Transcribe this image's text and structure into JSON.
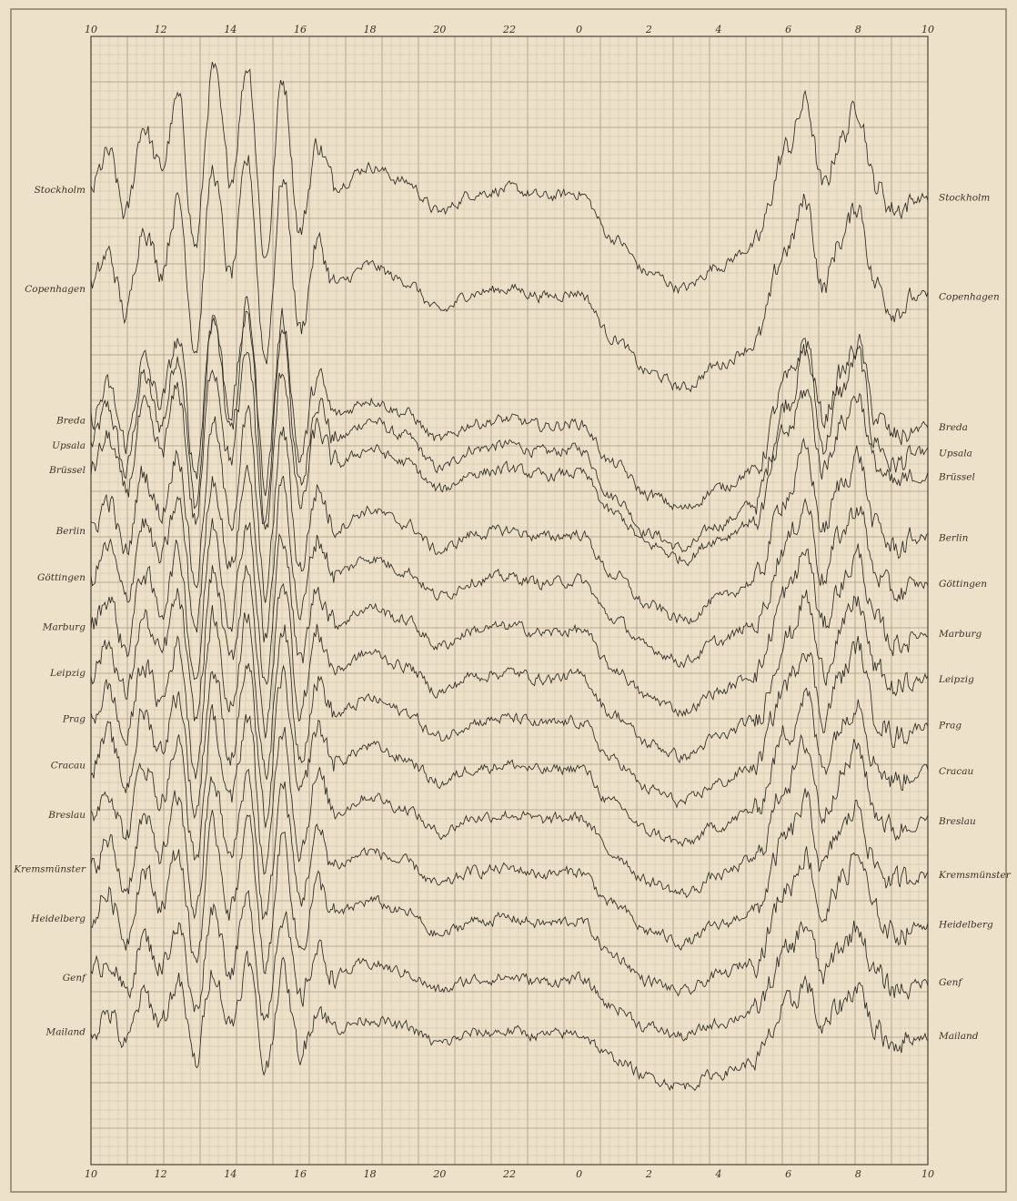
{
  "chart_data": {
    "type": "line",
    "title": "",
    "xlabel": "",
    "ylabel": "",
    "grid": true,
    "x_ticks_top": [
      "10",
      "12",
      "14",
      "16",
      "18",
      "20",
      "22",
      "0",
      "2",
      "4",
      "6",
      "8",
      "10"
    ],
    "x_ticks_bottom": [
      "10",
      "12",
      "14",
      "16",
      "18",
      "20",
      "22",
      "0",
      "2",
      "4",
      "6",
      "8",
      "10"
    ],
    "x_range_hours": [
      10,
      34
    ],
    "shape_points_x_hours": [
      10,
      10.5,
      11,
      11.5,
      12,
      12.5,
      13,
      13.5,
      14,
      14.5,
      15,
      15.5,
      16,
      16.5,
      17,
      18,
      19,
      20,
      21,
      22,
      23,
      24,
      25,
      26,
      27,
      28,
      29,
      30,
      30.5,
      31,
      31.5,
      32,
      32.5,
      33,
      34
    ],
    "y_units": "relative deflection (unlabelled)",
    "series": [
      {
        "name": "Upsala",
        "left_label": "Upsala",
        "right_label": "Upsala",
        "offset": 11.0,
        "amplitude": 1.05
      },
      {
        "name": "Stockholm",
        "left_label": "Stockholm",
        "right_label": "Stockholm",
        "offset": 4.3,
        "amplitude": 1.0
      },
      {
        "name": "Copenhagen",
        "left_label": "Copenhagen",
        "right_label": "Copenhagen",
        "offset": 6.9,
        "amplitude": 1.0
      },
      {
        "name": "Breda",
        "left_label": "Breda",
        "right_label": "Breda",
        "offset": 10.3,
        "amplitude": 0.9
      },
      {
        "name": "Brüssel",
        "left_label": "Brüssel",
        "right_label": "Brüssel",
        "offset": 11.6,
        "amplitude": 0.9
      },
      {
        "name": "Berlin",
        "left_label": "Berlin",
        "right_label": "Berlin",
        "offset": 13.2,
        "amplitude": 0.9
      },
      {
        "name": "Göttingen",
        "left_label": "Göttingen",
        "right_label": "Göttingen",
        "offset": 14.4,
        "amplitude": 0.85
      },
      {
        "name": "Marburg",
        "left_label": "Marburg",
        "right_label": "Marburg",
        "offset": 15.7,
        "amplitude": 0.85
      },
      {
        "name": "Leipzig",
        "left_label": "Leipzig",
        "right_label": "Leipzig",
        "offset": 16.9,
        "amplitude": 0.85
      },
      {
        "name": "Prag",
        "left_label": "Prag",
        "right_label": "Prag",
        "offset": 18.1,
        "amplitude": 0.85
      },
      {
        "name": "Cracau",
        "left_label": "Cracau",
        "right_label": "Cracau",
        "offset": 19.3,
        "amplitude": 0.8
      },
      {
        "name": "Breslau",
        "left_label": "Breslau",
        "right_label": "Breslau",
        "offset": 20.6,
        "amplitude": 0.8
      },
      {
        "name": "Kremsmünster",
        "left_label": "Kremsmünster",
        "right_label": "Kremsmünster",
        "offset": 22.0,
        "amplitude": 0.75
      },
      {
        "name": "Heidelberg",
        "left_label": "Heidelberg",
        "right_label": "Heidelberg",
        "offset": 23.3,
        "amplitude": 0.75
      },
      {
        "name": "Genf",
        "left_label": "Genf",
        "right_label": "Genf",
        "offset": 24.8,
        "amplitude": 0.6
      },
      {
        "name": "Mailand",
        "left_label": "Mailand",
        "right_label": "Mailand",
        "offset": 26.2,
        "amplitude": 0.55
      }
    ],
    "common_shape": [
      0.3,
      1.2,
      -0.4,
      2.0,
      0.8,
      2.6,
      -1.2,
      3.4,
      0.6,
      3.6,
      -1.5,
      3.2,
      -0.8,
      1.5,
      0.4,
      0.9,
      0.5,
      -0.3,
      0.2,
      0.3,
      0.1,
      0.2,
      -1.0,
      -1.9,
      -2.3,
      -1.7,
      -1.2,
      1.4,
      2.6,
      0.3,
      1.6,
      2.5,
      0.4,
      -0.2,
      0.1
    ],
    "colors": {
      "paper": "#ede1c9",
      "grid_minor": "#cbbda2",
      "grid_major": "#a89a80",
      "trace": "#2d2a24",
      "text": "#3a3226"
    }
  }
}
